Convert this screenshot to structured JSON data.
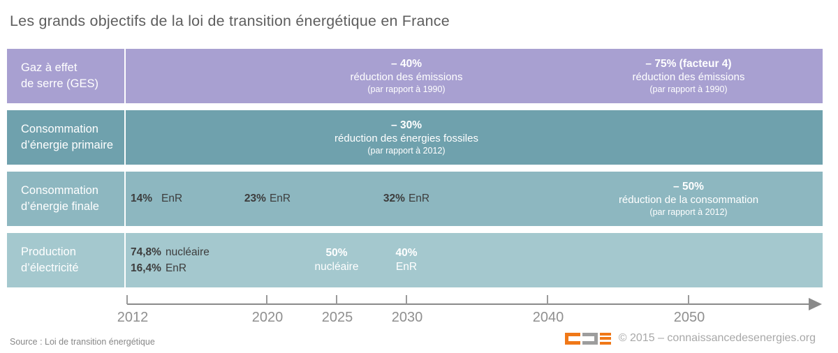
{
  "title": "Les grands objectifs de la loi de transition énergétique en France",
  "colors": {
    "band_ges": "#a8a0d1",
    "band_energie_primaire": "#6fa1ad",
    "band_energie_finale": "#8db7c0",
    "band_production_electricite": "#a4c8ce",
    "logo_orange": "#f07818",
    "logo_gray": "#9d9d9d",
    "axis_gray": "#8a8a8a",
    "dark_text": "#3d3d3d"
  },
  "bands": [
    {
      "name": "Gaz à effet de serre (GES)",
      "label_lines": [
        "Gaz à effet",
        "de serre (GES)"
      ],
      "goals": [
        {
          "year": "2030",
          "value": "– 40%",
          "description": "réduction des émissions",
          "baseline": "(par rapport à 1990)"
        },
        {
          "year": "2050",
          "value": "– 75% (facteur 4)",
          "description": "réduction des émissions",
          "baseline": "(par rapport à 1990)"
        }
      ]
    },
    {
      "name": "Consommation d’énergie primaire",
      "label_lines": [
        "Consommation",
        "d’énergie primaire"
      ],
      "goals": [
        {
          "year": "2030",
          "value": "– 30%",
          "description": "réduction des énergies fossiles",
          "baseline": "(par rapport à 2012)"
        }
      ]
    },
    {
      "name": "Consommation d’énergie finale",
      "label_lines": [
        "Consommation",
        "d’énergie finale"
      ],
      "milestones": [
        {
          "year": "2012",
          "pct": "14%",
          "unit": "EnR"
        },
        {
          "year": "2020",
          "pct": "23%",
          "unit": "EnR"
        },
        {
          "year": "2030",
          "pct": "32%",
          "unit": "EnR"
        }
      ],
      "goals": [
        {
          "year": "2050",
          "value": "– 50%",
          "description": "réduction de la consommation",
          "baseline": "(par rapport à 2012)"
        }
      ]
    },
    {
      "name": "Production d’électricité",
      "label_lines": [
        "Production",
        "d’électricité"
      ],
      "current_mix": [
        {
          "year": "2012",
          "pct": "74,8%",
          "unit": "nucléaire"
        },
        {
          "year": "2012",
          "pct": "16,4%",
          "unit": "EnR"
        }
      ],
      "targets": [
        {
          "year": "2025",
          "pct": "50%",
          "unit": "nucléaire"
        },
        {
          "year": "2030",
          "pct": "40%",
          "unit": "EnR"
        }
      ]
    }
  ],
  "timeline": {
    "years": [
      "2012",
      "2020",
      "2025",
      "2030",
      "2040",
      "2050"
    ]
  },
  "footer": {
    "source": "Source : Loi de transition énergétique",
    "copyright": "© 2015 – connaissancedesenergies.org"
  },
  "chart_data": {
    "type": "table",
    "title": "Les grands objectifs de la loi de transition énergétique en France",
    "x_axis": {
      "ticks": [
        "2012",
        "2020",
        "2025",
        "2030",
        "2040",
        "2050"
      ],
      "arrow": true
    },
    "rows": [
      {
        "category": "Gaz à effet de serre (GES)",
        "milestones": [
          {
            "year": 2030,
            "value": "– 40%",
            "description": "réduction des émissions",
            "baseline": "par rapport à 1990"
          },
          {
            "year": 2050,
            "value": "– 75% (facteur 4)",
            "description": "réduction des émissions",
            "baseline": "par rapport à 1990"
          }
        ]
      },
      {
        "category": "Consommation d’énergie primaire",
        "milestones": [
          {
            "year": 2030,
            "value": "– 30%",
            "description": "réduction des énergies fossiles",
            "baseline": "par rapport à 2012"
          }
        ]
      },
      {
        "category": "Consommation d’énergie finale",
        "milestones": [
          {
            "year": 2012,
            "value": "14% EnR"
          },
          {
            "year": 2020,
            "value": "23% EnR"
          },
          {
            "year": 2030,
            "value": "32% EnR"
          },
          {
            "year": 2050,
            "value": "– 50%",
            "description": "réduction de la consommation",
            "baseline": "par rapport à 2012"
          }
        ]
      },
      {
        "category": "Production d’électricité",
        "milestones": [
          {
            "year": 2012,
            "value": "74,8% nucléaire"
          },
          {
            "year": 2012,
            "value": "16,4% EnR"
          },
          {
            "year": 2025,
            "value": "50% nucléaire"
          },
          {
            "year": 2030,
            "value": "40% EnR"
          }
        ]
      }
    ]
  }
}
